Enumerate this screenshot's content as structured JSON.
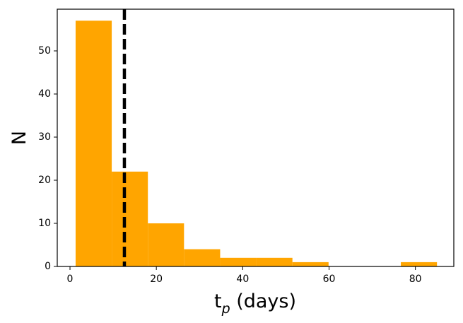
{
  "chart_data": {
    "type": "histogram",
    "bins": [
      1.3,
      9.67,
      18.04,
      26.41,
      34.78,
      43.15,
      51.52,
      59.89,
      68.26,
      76.63,
      85.0
    ],
    "values": [
      57,
      22,
      10,
      4,
      2,
      2,
      1,
      0,
      0,
      1
    ],
    "color": "#ffa500",
    "xlabel": [
      "t",
      "p",
      " (days)"
    ],
    "ylabel": "N",
    "xlim": [
      -2.95,
      88.9
    ],
    "xticks": [
      0,
      20,
      40,
      60,
      80
    ],
    "ylim": [
      0,
      59.67
    ],
    "yticks": [
      0,
      10,
      20,
      30,
      40,
      50
    ],
    "vlines": [
      {
        "x": 12.6,
        "color": "#000000",
        "style": "dashed"
      }
    ]
  }
}
